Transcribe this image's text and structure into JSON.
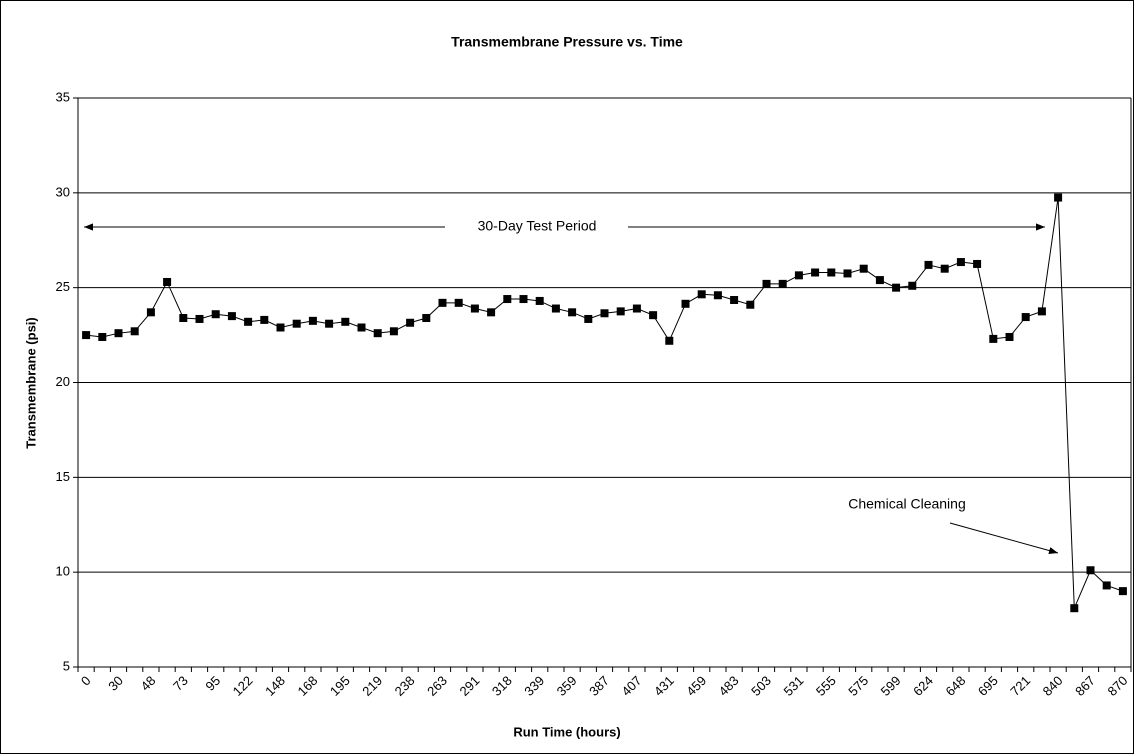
{
  "chart_data": {
    "type": "line",
    "title": "Transmembrane Pressure vs. Time",
    "xlabel": "Run Time (hours)",
    "ylabel": "Transmembrane (psi)",
    "categories": [
      "0",
      null,
      "30",
      null,
      "48",
      null,
      "73",
      null,
      "95",
      null,
      "122",
      null,
      "148",
      null,
      "168",
      null,
      "195",
      null,
      "219",
      null,
      "238",
      null,
      "263",
      null,
      "291",
      null,
      "318",
      null,
      "339",
      null,
      "359",
      null,
      "387",
      null,
      "407",
      null,
      "431",
      null,
      "459",
      null,
      "483",
      null,
      "503",
      null,
      "531",
      null,
      "555",
      null,
      "575",
      null,
      "599",
      null,
      "624",
      null,
      "648",
      null,
      "695",
      null,
      "721",
      null,
      "840",
      null,
      "867",
      null,
      "870"
    ],
    "values": [
      22.5,
      22.4,
      22.6,
      22.7,
      23.7,
      25.3,
      23.4,
      23.35,
      23.6,
      23.5,
      23.2,
      23.3,
      22.9,
      23.1,
      23.25,
      23.1,
      23.2,
      22.9,
      22.6,
      22.7,
      23.15,
      23.4,
      24.2,
      24.2,
      23.9,
      23.7,
      24.4,
      24.4,
      24.3,
      23.9,
      23.7,
      23.35,
      23.65,
      23.75,
      23.9,
      23.55,
      22.2,
      24.15,
      24.65,
      24.6,
      24.35,
      24.1,
      25.2,
      25.2,
      25.65,
      25.8,
      25.8,
      25.75,
      26.0,
      25.4,
      25.0,
      25.1,
      26.2,
      26.0,
      26.35,
      26.25,
      22.3,
      22.4,
      23.45,
      23.75,
      29.75,
      8.1,
      10.1,
      9.3,
      9.0
    ],
    "color": "#000000",
    "ylim": [
      5,
      35
    ],
    "yticks": [
      5,
      10,
      15,
      20,
      25,
      30,
      35
    ],
    "grid": true,
    "annotations": [
      "30-Day Test Period",
      "Chemical Cleaning"
    ]
  }
}
